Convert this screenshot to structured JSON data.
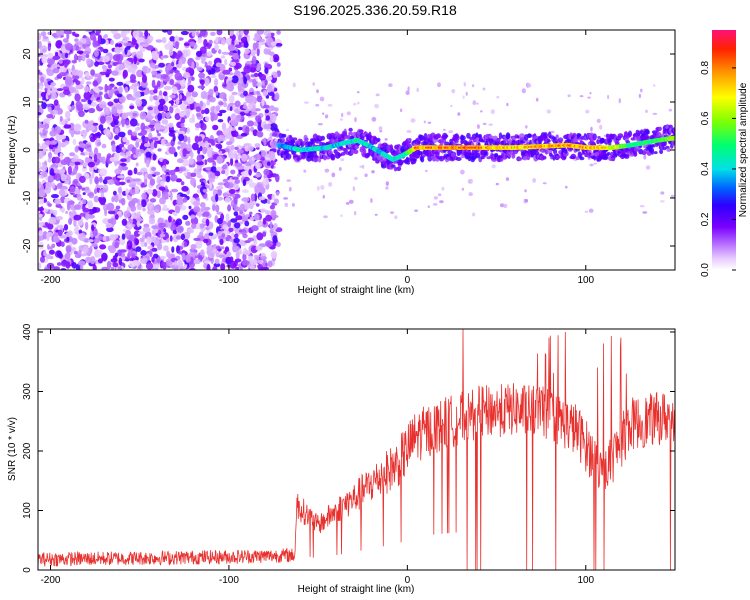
{
  "title": "S196.2025.336.20.59.R18",
  "chart_data": [
    {
      "type": "heatmap",
      "xlabel": "Height of straight line (km)",
      "ylabel": "Frequency (Hz)",
      "xlim": [
        -207,
        150
      ],
      "ylim": [
        -25,
        25
      ],
      "x_ticks": [
        -200,
        -100,
        0,
        100
      ],
      "y_ticks": [
        -20,
        -10,
        0,
        10,
        20
      ],
      "colorbar": {
        "label": "Normalized spectral amplitude",
        "range": [
          0.0,
          0.95
        ],
        "ticks": [
          0.0,
          0.2,
          0.4,
          0.6,
          0.8
        ]
      },
      "noise_region_end_km": -72,
      "ridge": [
        {
          "x": -72,
          "y": 1.0,
          "v": 0.35
        },
        {
          "x": -60,
          "y": 0.0,
          "v": 0.45
        },
        {
          "x": -45,
          "y": 0.5,
          "v": 0.45
        },
        {
          "x": -35,
          "y": 1.5,
          "v": 0.4
        },
        {
          "x": -28,
          "y": 2.0,
          "v": 0.5
        },
        {
          "x": -22,
          "y": 1.0,
          "v": 0.45
        },
        {
          "x": -15,
          "y": -0.5,
          "v": 0.4
        },
        {
          "x": -8,
          "y": -2.0,
          "v": 0.45
        },
        {
          "x": -2,
          "y": -1.0,
          "v": 0.5
        },
        {
          "x": 5,
          "y": 0.5,
          "v": 0.9
        },
        {
          "x": 30,
          "y": 0.5,
          "v": 0.95
        },
        {
          "x": 60,
          "y": 0.5,
          "v": 0.85
        },
        {
          "x": 90,
          "y": 1.0,
          "v": 0.9
        },
        {
          "x": 100,
          "y": 0.5,
          "v": 0.9
        },
        {
          "x": 115,
          "y": 0.5,
          "v": 0.8
        },
        {
          "x": 125,
          "y": 1.0,
          "v": 0.5
        },
        {
          "x": 140,
          "y": 2.0,
          "v": 0.6
        },
        {
          "x": 150,
          "y": 2.5,
          "v": 0.65
        }
      ]
    },
    {
      "type": "line",
      "xlabel": "Height of straight line (km)",
      "ylabel": "SNR (10 * v/v)",
      "xlim": [
        -207,
        150
      ],
      "ylim": [
        0,
        405
      ],
      "x_ticks": [
        -200,
        -100,
        0,
        100
      ],
      "y_ticks": [
        0,
        100,
        200,
        300,
        400
      ],
      "color": "#e8312e",
      "trend": [
        {
          "x": -207,
          "y": 18
        },
        {
          "x": -150,
          "y": 20
        },
        {
          "x": -100,
          "y": 22
        },
        {
          "x": -63,
          "y": 25
        },
        {
          "x": -62,
          "y": 110
        },
        {
          "x": -50,
          "y": 75
        },
        {
          "x": -40,
          "y": 100
        },
        {
          "x": -30,
          "y": 120
        },
        {
          "x": -20,
          "y": 145
        },
        {
          "x": -5,
          "y": 180
        },
        {
          "x": 5,
          "y": 225
        },
        {
          "x": 20,
          "y": 245
        },
        {
          "x": 40,
          "y": 265
        },
        {
          "x": 60,
          "y": 270
        },
        {
          "x": 80,
          "y": 262
        },
        {
          "x": 95,
          "y": 235
        },
        {
          "x": 110,
          "y": 160
        },
        {
          "x": 125,
          "y": 245
        },
        {
          "x": 150,
          "y": 260
        }
      ]
    }
  ]
}
